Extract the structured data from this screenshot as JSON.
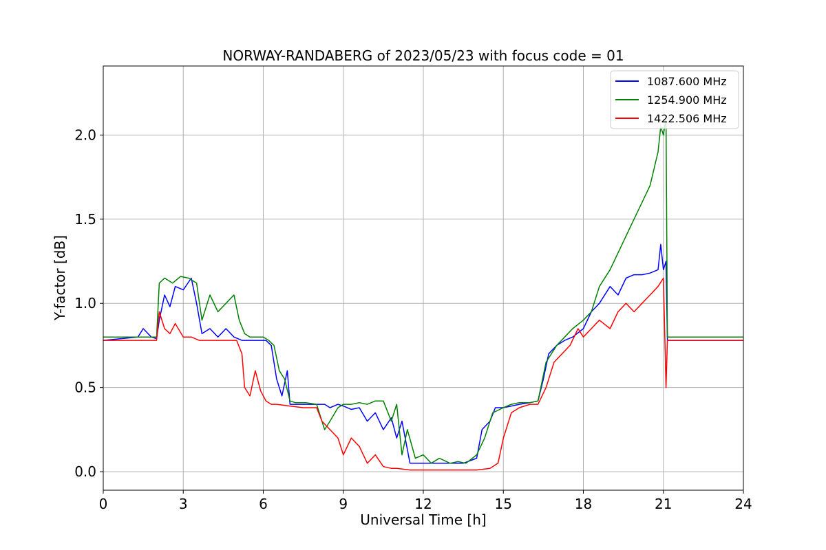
{
  "chart_data": {
    "type": "line",
    "title": "NORWAY-RANDABERG of 2023/05/23 with focus code = 01",
    "xlabel": "Universal Time [h]",
    "ylabel": "Y-factor [dB]",
    "xlim": [
      0,
      24
    ],
    "ylim": [
      -0.11,
      2.41
    ],
    "xticks": [
      0,
      3,
      6,
      9,
      12,
      15,
      18,
      21,
      24
    ],
    "xtick_labels": [
      "0",
      "3",
      "6",
      "9",
      "12",
      "15",
      "18",
      "21",
      "24"
    ],
    "yticks": [
      0.0,
      0.5,
      1.0,
      1.5,
      2.0
    ],
    "ytick_labels": [
      "0.0",
      "0.5",
      "1.0",
      "1.5",
      "2.0"
    ],
    "grid": true,
    "legend_position": "top-right",
    "series": [
      {
        "name": "1087.600 MHz",
        "color": "#0000ff",
        "x": [
          0,
          1.3,
          1.5,
          1.8,
          2.0,
          2.1,
          2.3,
          2.5,
          2.7,
          3.0,
          3.3,
          3.5,
          3.7,
          4.0,
          4.3,
          4.6,
          4.9,
          5.2,
          5.5,
          5.8,
          6.1,
          6.3,
          6.5,
          6.7,
          6.9,
          7.0,
          7.2,
          7.6,
          8.0,
          8.3,
          8.5,
          8.8,
          9.0,
          9.3,
          9.6,
          9.9,
          10.2,
          10.5,
          10.8,
          11.0,
          11.2,
          11.5,
          12.0,
          12.5,
          13.0,
          13.5,
          14.0,
          14.2,
          14.5,
          14.7,
          15.0,
          15.3,
          15.6,
          16.0,
          16.3,
          16.5,
          16.7,
          17.0,
          17.3,
          17.6,
          18.0,
          18.3,
          18.6,
          19.0,
          19.3,
          19.6,
          19.9,
          20.2,
          20.5,
          20.8,
          20.9,
          21.0,
          21.1,
          21.15,
          21.3,
          22,
          23,
          24
        ],
        "y": [
          0.78,
          0.8,
          0.85,
          0.8,
          0.79,
          0.9,
          1.05,
          0.98,
          1.1,
          1.08,
          1.15,
          1.0,
          0.82,
          0.85,
          0.8,
          0.85,
          0.8,
          0.78,
          0.78,
          0.78,
          0.78,
          0.75,
          0.55,
          0.45,
          0.6,
          0.4,
          0.4,
          0.4,
          0.4,
          0.4,
          0.38,
          0.4,
          0.39,
          0.37,
          0.38,
          0.3,
          0.35,
          0.25,
          0.32,
          0.2,
          0.3,
          0.05,
          0.05,
          0.05,
          0.05,
          0.05,
          0.08,
          0.25,
          0.3,
          0.38,
          0.38,
          0.39,
          0.4,
          0.41,
          0.42,
          0.55,
          0.7,
          0.75,
          0.78,
          0.8,
          0.85,
          0.95,
          1.0,
          1.1,
          1.05,
          1.15,
          1.17,
          1.17,
          1.18,
          1.2,
          1.35,
          1.2,
          1.25,
          0.78,
          0.78,
          0.78,
          0.78,
          0.78
        ]
      },
      {
        "name": "1254.900 MHz",
        "color": "#008000",
        "x": [
          0,
          1.5,
          2.0,
          2.1,
          2.3,
          2.6,
          2.9,
          3.2,
          3.5,
          3.7,
          4.0,
          4.3,
          4.6,
          4.9,
          5.1,
          5.3,
          5.5,
          5.8,
          6.0,
          6.2,
          6.4,
          6.6,
          6.8,
          7.0,
          7.2,
          7.6,
          8.0,
          8.3,
          8.5,
          8.8,
          9.0,
          9.3,
          9.6,
          9.9,
          10.2,
          10.5,
          10.8,
          11.0,
          11.2,
          11.4,
          11.7,
          12.0,
          12.3,
          12.6,
          13.0,
          13.3,
          13.6,
          14.0,
          14.3,
          14.6,
          15.0,
          15.3,
          15.6,
          16.0,
          16.3,
          16.6,
          17.0,
          17.3,
          17.6,
          18.0,
          18.3,
          18.6,
          19.0,
          19.3,
          19.6,
          19.9,
          20.2,
          20.5,
          20.8,
          20.9,
          21.0,
          21.1,
          21.15,
          21.3,
          22,
          23,
          24
        ],
        "y": [
          0.8,
          0.8,
          0.8,
          1.12,
          1.15,
          1.12,
          1.16,
          1.15,
          1.12,
          0.9,
          1.05,
          0.95,
          1.0,
          1.05,
          0.9,
          0.82,
          0.8,
          0.8,
          0.8,
          0.78,
          0.75,
          0.6,
          0.55,
          0.42,
          0.41,
          0.41,
          0.4,
          0.25,
          0.3,
          0.38,
          0.4,
          0.4,
          0.41,
          0.4,
          0.42,
          0.42,
          0.3,
          0.4,
          0.1,
          0.25,
          0.08,
          0.1,
          0.05,
          0.08,
          0.05,
          0.06,
          0.05,
          0.1,
          0.2,
          0.35,
          0.38,
          0.4,
          0.41,
          0.41,
          0.42,
          0.65,
          0.75,
          0.8,
          0.85,
          0.9,
          0.95,
          1.1,
          1.2,
          1.3,
          1.4,
          1.5,
          1.6,
          1.7,
          1.9,
          2.05,
          2.0,
          2.1,
          0.8,
          0.8,
          0.8,
          0.8,
          0.8
        ]
      },
      {
        "name": "1422.506 MHz",
        "color": "#ff0000",
        "x": [
          0,
          1.9,
          2.0,
          2.1,
          2.3,
          2.5,
          2.7,
          3.0,
          3.3,
          3.6,
          4.0,
          4.5,
          5.0,
          5.2,
          5.3,
          5.5,
          5.7,
          5.9,
          6.1,
          6.3,
          6.5,
          7.0,
          7.5,
          8.0,
          8.2,
          8.5,
          8.8,
          9.0,
          9.3,
          9.6,
          9.9,
          10.2,
          10.5,
          10.8,
          11.0,
          11.5,
          12.0,
          12.5,
          13.0,
          13.5,
          14.0,
          14.5,
          14.8,
          15.0,
          15.3,
          15.6,
          16.0,
          16.3,
          16.6,
          16.9,
          17.2,
          17.5,
          17.8,
          18.0,
          18.3,
          18.6,
          19.0,
          19.3,
          19.6,
          19.9,
          20.2,
          20.5,
          20.8,
          21.0,
          21.1,
          21.15,
          21.3,
          22,
          23,
          24
        ],
        "y": [
          0.78,
          0.78,
          0.78,
          0.95,
          0.85,
          0.82,
          0.88,
          0.8,
          0.8,
          0.78,
          0.78,
          0.78,
          0.78,
          0.7,
          0.5,
          0.45,
          0.6,
          0.48,
          0.42,
          0.4,
          0.4,
          0.39,
          0.38,
          0.38,
          0.3,
          0.25,
          0.2,
          0.1,
          0.2,
          0.15,
          0.05,
          0.1,
          0.03,
          0.02,
          0.02,
          0.01,
          0.01,
          0.01,
          0.01,
          0.01,
          0.01,
          0.02,
          0.05,
          0.2,
          0.35,
          0.38,
          0.4,
          0.4,
          0.5,
          0.65,
          0.7,
          0.75,
          0.85,
          0.8,
          0.85,
          0.9,
          0.85,
          0.95,
          1.0,
          0.95,
          1.0,
          1.05,
          1.1,
          1.15,
          0.5,
          0.78,
          0.78,
          0.78,
          0.78,
          0.78
        ]
      }
    ]
  }
}
